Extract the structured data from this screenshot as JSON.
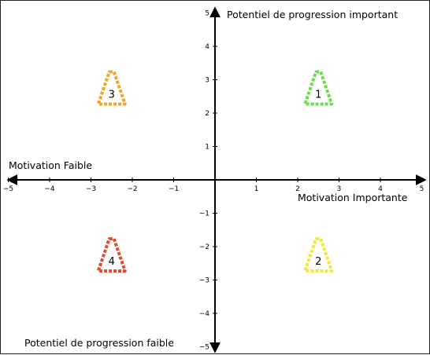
{
  "labels": {
    "top": "Potentiel de progression important",
    "bottom": "Potentiel de progression faible",
    "left": "Motivation Faible",
    "right": "Motivation Importante"
  },
  "axis": {
    "xlim": [
      -5,
      5
    ],
    "ylim": [
      -5,
      5
    ],
    "x_ticks": [
      "−5",
      "−4",
      "−3",
      "−2",
      "−1",
      "1",
      "2",
      "3",
      "4",
      "5"
    ],
    "y_ticks": [
      "5",
      "4",
      "3",
      "2",
      "1",
      "−1",
      "−2",
      "−3",
      "−4",
      "−5"
    ]
  },
  "markers": [
    {
      "label": "1",
      "x": 2.5,
      "y": 2.6,
      "color": "#6fdc4f"
    },
    {
      "label": "2",
      "x": 2.5,
      "y": -2.4,
      "color": "#f2e83c"
    },
    {
      "label": "3",
      "x": -2.5,
      "y": 2.6,
      "color": "#f3a52a"
    },
    {
      "label": "4",
      "x": -2.5,
      "y": -2.4,
      "color": "#e44b2e"
    }
  ]
}
